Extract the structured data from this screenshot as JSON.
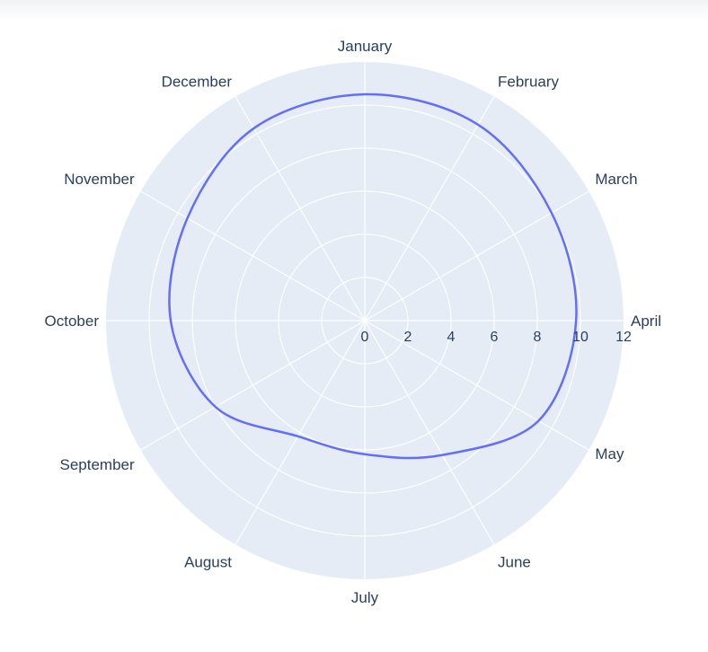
{
  "chart_data": {
    "type": "line",
    "subtype": "polar",
    "theta": [
      "January",
      "February",
      "March",
      "April",
      "May",
      "June",
      "July",
      "August",
      "September",
      "October",
      "November",
      "December"
    ],
    "r": [
      10.5,
      10.5,
      10.0,
      9.8,
      9.3,
      7.2,
      6.2,
      6.2,
      8.0,
      9.0,
      9.5,
      10.3
    ],
    "radial_range": [
      0,
      12
    ],
    "radial_ticks": [
      "0",
      "2",
      "4",
      "6",
      "8",
      "10",
      "12"
    ],
    "line_shape": "spline",
    "direction": "clockwise",
    "rotation_start": "top",
    "grid": true,
    "colors": {
      "line": "#636efa",
      "polar_background": "#e5ecf6",
      "grid": "#ffffff",
      "text": "#2a3f5f"
    }
  }
}
